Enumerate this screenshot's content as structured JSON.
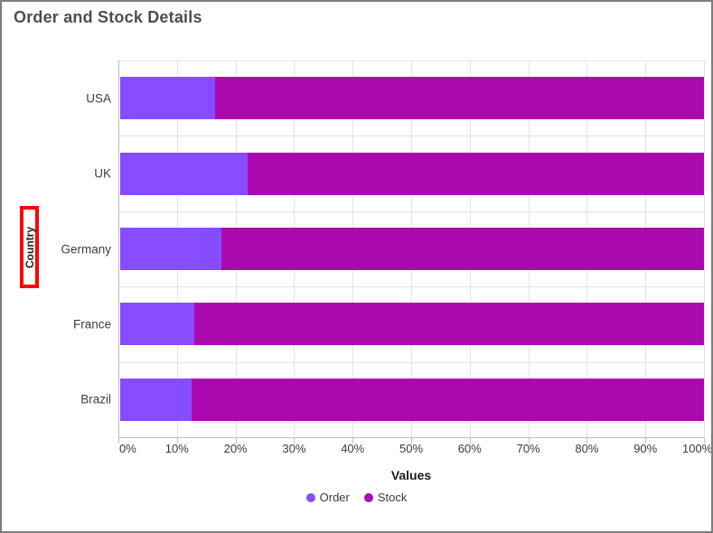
{
  "header": {
    "title": "Order and Stock Details"
  },
  "chart_data": {
    "type": "bar",
    "subtype": "horizontal-100-stacked",
    "title": "Order and Stock Details",
    "categories": [
      "USA",
      "UK",
      "Germany",
      "France",
      "Brazil"
    ],
    "series": [
      {
        "name": "Order",
        "color": "#864CFF",
        "values_pct": [
          16.3,
          21.8,
          17.4,
          12.7,
          12.3
        ]
      },
      {
        "name": "Stock",
        "color": "#AA09B0",
        "values_pct": [
          83.7,
          78.2,
          82.6,
          87.3,
          87.7
        ]
      }
    ],
    "xlabel": "Values",
    "ylabel": "Country",
    "xlim": [
      0,
      100
    ],
    "x_ticks": [
      "0%",
      "10%",
      "20%",
      "30%",
      "40%",
      "50%",
      "60%",
      "70%",
      "80%",
      "90%",
      "100%"
    ],
    "grid": true,
    "legend_position": "bottom",
    "legend": [
      "Order",
      "Stock"
    ]
  },
  "annotation": {
    "type": "highlight-box",
    "target": "y-axis-title",
    "border_color": "#FF0000"
  },
  "colors": {
    "order": "#864CFF",
    "stock": "#AA09B0",
    "grid": "#E3E3E3",
    "axis_line": "#BDBDBD",
    "title_text": "#4E4E4E",
    "label_text": "#3A3A3A",
    "window_border": "#7E7E7E"
  }
}
